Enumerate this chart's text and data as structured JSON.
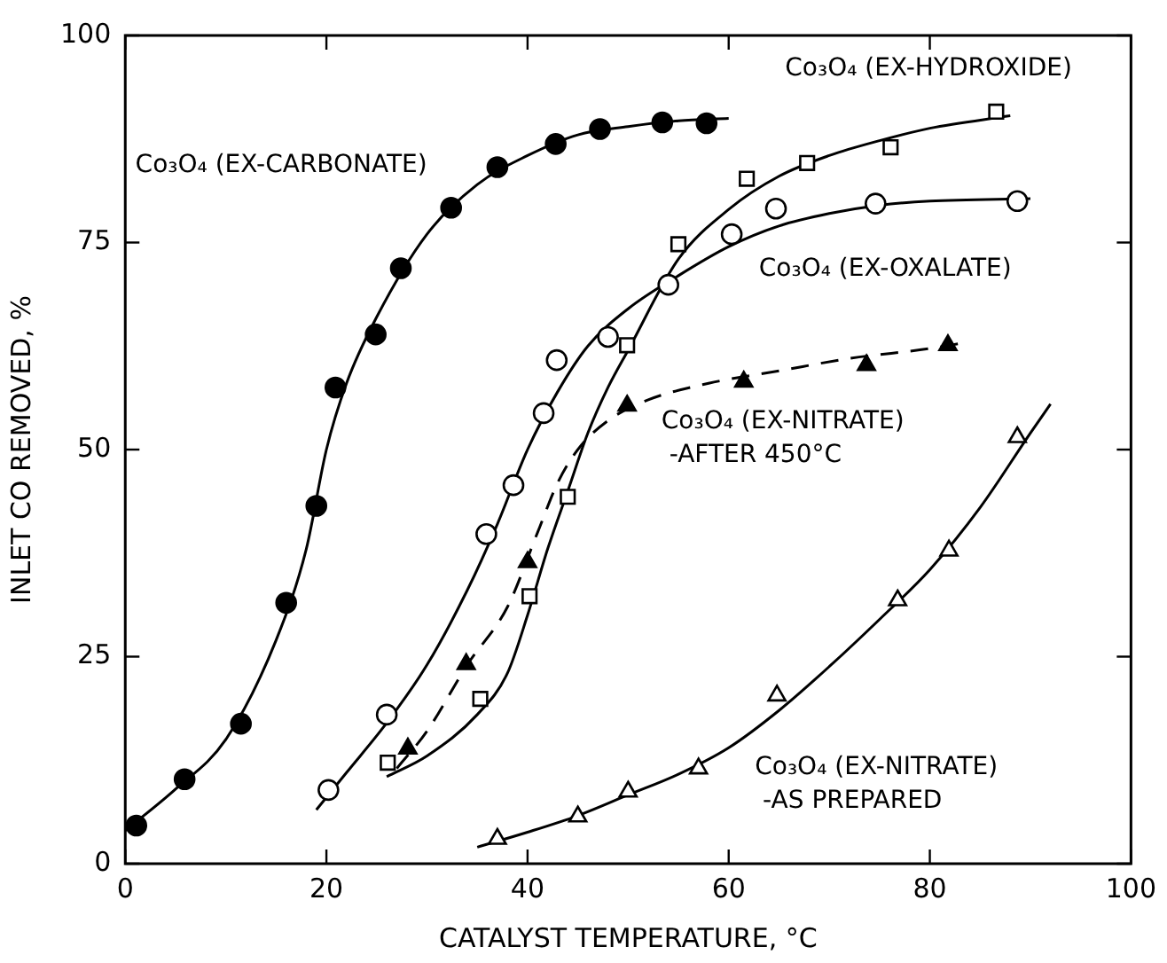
{
  "chart_data": {
    "type": "scatter",
    "xlabel": "CATALYST TEMPERATURE, °C",
    "ylabel": "INLET CO REMOVED, %",
    "xlim": [
      0,
      100
    ],
    "ylim": [
      0,
      100
    ],
    "xticks": [
      0,
      20,
      40,
      60,
      80,
      100
    ],
    "yticks": [
      0,
      25,
      50,
      75,
      100
    ],
    "grid": false,
    "series": [
      {
        "name": "Co₃O₄ (EX-CARBONATE)",
        "type": "scatter",
        "marker": "circle",
        "color": "#000000",
        "x": [
          1.1,
          5.9,
          11.5,
          16.0,
          19.0,
          20.9,
          24.9,
          27.4,
          32.4,
          37.0,
          42.8,
          47.2,
          53.4,
          57.8
        ],
        "values": [
          4.6,
          10.2,
          16.9,
          31.5,
          43.2,
          57.5,
          63.9,
          71.9,
          79.2,
          84.1,
          86.9,
          88.7,
          89.5,
          89.4
        ]
      },
      {
        "name": "Co₃O₄ (EX-HYDROXIDE)",
        "type": "scatter",
        "marker": "square",
        "color": "#ffffff",
        "x": [
          26.1,
          35.3,
          40.2,
          44.0,
          49.9,
          55.0,
          61.8,
          67.8,
          76.1,
          86.6
        ],
        "values": [
          12.2,
          19.9,
          32.3,
          44.3,
          62.6,
          74.8,
          82.7,
          84.6,
          86.5,
          90.8
        ]
      },
      {
        "name": "Co₃O₄ (EX-OXALATE)",
        "type": "scatter",
        "marker": "circle",
        "color": "#ffffff",
        "x": [
          20.2,
          26.0,
          35.9,
          38.6,
          41.6,
          42.9,
          48.0,
          54.0,
          60.3,
          64.7,
          74.6,
          88.7
        ],
        "values": [
          8.9,
          18.0,
          39.8,
          45.7,
          54.4,
          60.8,
          63.6,
          69.9,
          76.0,
          79.1,
          79.7,
          80.0
        ]
      },
      {
        "name": "Co₃O₄ (EX-NITRATE) -AFTER 450°C",
        "type": "scatter",
        "marker": "triangle",
        "color": "#000000",
        "x": [
          28.1,
          33.9,
          40.0,
          49.9,
          61.5,
          73.7,
          81.8
        ],
        "values": [
          13.9,
          24.1,
          36.4,
          55.3,
          58.2,
          60.2,
          62.6
        ]
      },
      {
        "name": "Co₃O₄ (EX-NITRATE) -AS PREPARED",
        "type": "scatter",
        "marker": "triangle",
        "color": "#ffffff",
        "x": [
          37.0,
          45.0,
          50.0,
          57.0,
          64.8,
          76.8,
          81.9,
          88.7
        ],
        "values": [
          3.0,
          5.7,
          8.7,
          11.5,
          20.3,
          31.8,
          37.8,
          51.5
        ]
      },
      {
        "type": "line",
        "marker": "none",
        "line_style": "solid",
        "color": "#000000",
        "x": [
          0,
          5,
          10,
          15,
          18,
          20,
          22,
          25,
          30,
          35,
          40,
          45,
          50,
          55,
          60
        ],
        "values": [
          4,
          9,
          15,
          27,
          38,
          50,
          58,
          66,
          76,
          82,
          85.5,
          88,
          89,
          89.7,
          90
        ]
      },
      {
        "type": "line",
        "marker": "none",
        "line_style": "solid",
        "color": "#000000",
        "x": [
          26,
          30,
          35,
          38,
          40,
          42,
          44,
          46,
          48,
          50,
          55,
          60,
          65,
          70,
          75,
          80,
          88
        ],
        "values": [
          10.5,
          13,
          18,
          23,
          30,
          38,
          45,
          52,
          57.5,
          62,
          73,
          79,
          83,
          85.5,
          87.3,
          88.8,
          90.3
        ]
      },
      {
        "type": "line",
        "marker": "none",
        "line_style": "solid",
        "color": "#000000",
        "x": [
          19,
          22,
          26,
          30,
          34,
          37,
          40,
          43,
          46,
          50,
          55,
          60,
          65,
          70,
          75,
          80,
          90
        ],
        "values": [
          6.5,
          11,
          17,
          24,
          33,
          41,
          50,
          57,
          62.5,
          67,
          71,
          74.5,
          77,
          78.5,
          79.5,
          80,
          80.3
        ]
      },
      {
        "type": "line",
        "marker": "none",
        "line_style": "dashed",
        "color": "#000000",
        "x": [
          27,
          30,
          34,
          38,
          41,
          43,
          45,
          48,
          52,
          58,
          65,
          72,
          80,
          83
        ],
        "values": [
          11.5,
          16,
          24,
          31,
          40,
          46,
          50,
          53.5,
          56,
          58,
          59.5,
          61,
          62.2,
          62.8
        ]
      },
      {
        "type": "line",
        "marker": "none",
        "line_style": "solid",
        "color": "#000000",
        "x": [
          35,
          40,
          45,
          50,
          55,
          60,
          65,
          70,
          75,
          80,
          85,
          90,
          92
        ],
        "values": [
          2,
          3.8,
          5.8,
          8.3,
          10.8,
          14,
          18.5,
          23.8,
          29.5,
          35.5,
          43,
          52,
          55.5
        ]
      }
    ]
  }
}
